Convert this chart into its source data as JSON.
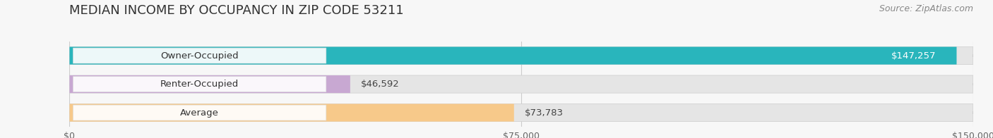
{
  "title": "MEDIAN INCOME BY OCCUPANCY IN ZIP CODE 53211",
  "source": "Source: ZipAtlas.com",
  "categories": [
    "Owner-Occupied",
    "Renter-Occupied",
    "Average"
  ],
  "values": [
    147257,
    46592,
    73783
  ],
  "bar_colors": [
    "#29b5bc",
    "#c8a8d2",
    "#f7c98a"
  ],
  "value_labels": [
    "$147,257",
    "$46,592",
    "$73,783"
  ],
  "x_ticks": [
    0,
    75000,
    150000
  ],
  "x_tick_labels": [
    "$0",
    "$75,000",
    "$150,000"
  ],
  "xlim": [
    0,
    150000
  ],
  "background_color": "#f7f7f7",
  "bar_background_color": "#e5e5e5",
  "title_fontsize": 13,
  "source_fontsize": 9,
  "label_fontsize": 9.5,
  "value_fontsize": 9.5,
  "tick_fontsize": 9
}
